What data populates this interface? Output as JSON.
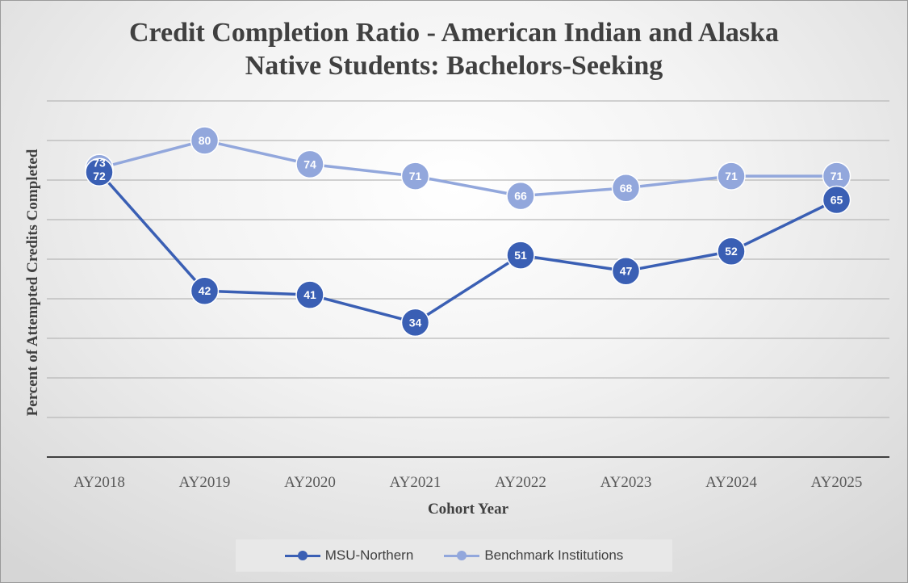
{
  "chart_data": {
    "type": "line",
    "title_line1": "Credit Completion Ratio - American Indian and Alaska",
    "title_line2": "Native Students: Bachelors-Seeking",
    "xlabel": "Cohort Year",
    "ylabel": "Percent of Attempted Credits Completed",
    "categories": [
      "AY2018",
      "AY2019",
      "AY2020",
      "AY2021",
      "AY2022",
      "AY2023",
      "AY2024",
      "AY2025"
    ],
    "ylim": [
      0,
      90
    ],
    "grid": true,
    "legend_position": "bottom",
    "series": [
      {
        "name": "MSU-Northern",
        "color": "#3a5fb4",
        "values": [
          72,
          42,
          41,
          34,
          51,
          47,
          52,
          65
        ]
      },
      {
        "name": "Benchmark Institutions",
        "color": "#92a7dc",
        "values": [
          73,
          80,
          74,
          71,
          66,
          68,
          71,
          71
        ]
      }
    ]
  }
}
